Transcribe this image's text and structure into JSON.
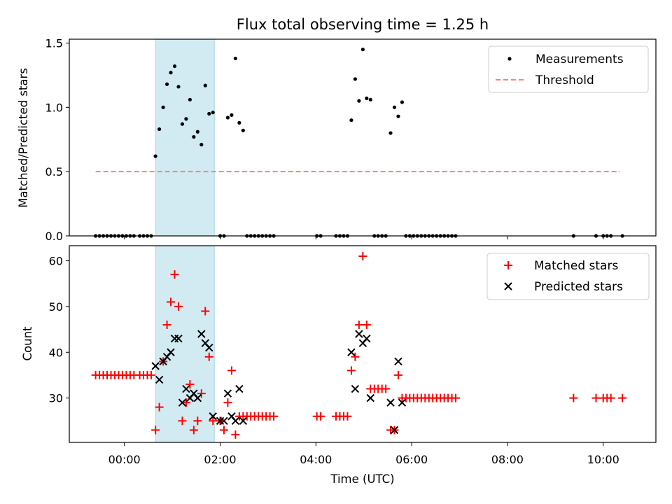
{
  "chart_data": [
    {
      "type": "scatter",
      "title": "Flux total observing time = 1.25 h",
      "ylabel": "Matched/Predicted stars",
      "xlabel": "",
      "xlim": [
        -1.15,
        11.1
      ],
      "ylim": [
        0,
        1.53
      ],
      "yticks": [
        "0.0",
        "0.5",
        "1.0",
        "1.5"
      ],
      "shaded_span": [
        0.65,
        1.88
      ],
      "legend": {
        "placement": "top-right",
        "entries": [
          "Measurements",
          "Threshold"
        ]
      },
      "colors": {
        "measurements": "#000000",
        "threshold": "#ff7f7f",
        "span": "#add8e6"
      },
      "series": [
        {
          "name": "Measurements",
          "x": [
            -0.6,
            -0.52,
            -0.44,
            -0.36,
            -0.28,
            -0.2,
            -0.12,
            -0.04,
            0.04,
            0.12,
            0.2,
            0.32,
            0.4,
            0.48,
            0.56,
            0.65,
            0.73,
            0.81,
            0.89,
            0.97,
            1.05,
            1.13,
            1.21,
            1.29,
            1.37,
            1.45,
            1.53,
            1.61,
            1.69,
            1.77,
            1.85,
            2.0,
            2.08,
            2.16,
            2.24,
            2.32,
            2.4,
            2.48,
            2.56,
            2.64,
            2.72,
            2.8,
            2.88,
            2.96,
            3.04,
            3.12,
            4.02,
            4.1,
            4.42,
            4.5,
            4.58,
            4.66,
            4.74,
            4.82,
            4.9,
            4.98,
            5.06,
            5.14,
            5.22,
            5.3,
            5.38,
            5.46,
            5.56,
            5.64,
            5.72,
            5.8,
            5.88,
            5.96,
            6.04,
            6.12,
            6.2,
            6.28,
            6.36,
            6.44,
            6.52,
            6.6,
            6.68,
            6.76,
            6.84,
            6.92,
            9.38,
            9.85,
            10.0,
            10.08,
            10.16,
            10.4
          ],
          "y": [
            0,
            0,
            0,
            0,
            0,
            0,
            0,
            0,
            0,
            0,
            0,
            0,
            0,
            0,
            0,
            0.62,
            0.83,
            1.0,
            1.18,
            1.27,
            1.32,
            1.16,
            0.87,
            0.91,
            1.06,
            0.77,
            0.81,
            0.71,
            1.17,
            0.95,
            0.96,
            0,
            0,
            0.92,
            0.94,
            1.38,
            0.88,
            0.82,
            0,
            0,
            0,
            0,
            0,
            0,
            0,
            0,
            0,
            0,
            0,
            0,
            0,
            0,
            0.9,
            1.22,
            1.05,
            1.45,
            1.07,
            1.06,
            0,
            0,
            0,
            0,
            0.8,
            1.0,
            0.93,
            1.04,
            0,
            0,
            0,
            0,
            0,
            0,
            0,
            0,
            0,
            0,
            0,
            0,
            0,
            0,
            0,
            0,
            0,
            0,
            0,
            0
          ]
        },
        {
          "name": "Threshold",
          "x": [
            -0.6,
            10.35
          ],
          "y": [
            0.5,
            0.5
          ]
        }
      ]
    },
    {
      "type": "scatter",
      "title": "",
      "ylabel": "Count",
      "xlabel": "Time (UTC)",
      "xlim": [
        -1.15,
        11.1
      ],
      "ylim": [
        20.3,
        63.3
      ],
      "xtick_values": [
        0,
        2,
        4,
        6,
        8,
        10
      ],
      "xticks": [
        "00:00",
        "02:00",
        "04:00",
        "06:00",
        "08:00",
        "10:00"
      ],
      "ytick_values": [
        30,
        40,
        50,
        60
      ],
      "yticks": [
        "30",
        "40",
        "50",
        "60"
      ],
      "shaded_span": [
        0.65,
        1.88
      ],
      "legend": {
        "placement": "top-right",
        "entries": [
          "Matched stars",
          "Predicted stars"
        ]
      },
      "colors": {
        "matched": "#ff0000",
        "predicted": "#000000",
        "span": "#add8e6"
      },
      "series": [
        {
          "name": "Matched stars",
          "x": [
            -0.6,
            -0.52,
            -0.44,
            -0.36,
            -0.28,
            -0.2,
            -0.12,
            -0.04,
            0.04,
            0.12,
            0.2,
            0.32,
            0.4,
            0.48,
            0.56,
            0.65,
            0.73,
            0.81,
            0.89,
            0.97,
            1.05,
            1.13,
            1.21,
            1.29,
            1.37,
            1.45,
            1.53,
            1.61,
            1.69,
            1.77,
            1.85,
            2.0,
            2.08,
            2.16,
            2.24,
            2.32,
            2.4,
            2.48,
            2.56,
            2.64,
            2.72,
            2.8,
            2.88,
            2.96,
            3.04,
            3.12,
            4.02,
            4.1,
            4.42,
            4.5,
            4.58,
            4.66,
            4.74,
            4.82,
            4.9,
            4.98,
            5.06,
            5.14,
            5.22,
            5.3,
            5.38,
            5.46,
            5.56,
            5.64,
            5.72,
            5.8,
            5.88,
            5.96,
            6.04,
            6.12,
            6.2,
            6.28,
            6.36,
            6.44,
            6.52,
            6.6,
            6.68,
            6.76,
            6.84,
            6.92,
            9.38,
            9.85,
            10.0,
            10.08,
            10.16,
            10.4
          ],
          "y": [
            35,
            35,
            35,
            35,
            35,
            35,
            35,
            35,
            35,
            35,
            35,
            35,
            35,
            35,
            35,
            23,
            28,
            38,
            46,
            51,
            57,
            50,
            25,
            29,
            33,
            23,
            25,
            31,
            49,
            39,
            25,
            25,
            23,
            29,
            36,
            22,
            26,
            26,
            26,
            26,
            26,
            26,
            26,
            26,
            26,
            26,
            26,
            26,
            26,
            26,
            26,
            26,
            36,
            39,
            46,
            61,
            46,
            32,
            32,
            32,
            32,
            32,
            23,
            23,
            35,
            30,
            30,
            30,
            30,
            30,
            30,
            30,
            30,
            30,
            30,
            30,
            30,
            30,
            30,
            30,
            30,
            30,
            30,
            30,
            30,
            30
          ]
        },
        {
          "name": "Predicted stars",
          "x": [
            0.65,
            0.73,
            0.81,
            0.89,
            0.97,
            1.05,
            1.13,
            1.21,
            1.29,
            1.37,
            1.45,
            1.53,
            1.61,
            1.69,
            1.77,
            1.85,
            2.0,
            2.08,
            2.16,
            2.24,
            2.32,
            2.4,
            2.48,
            4.74,
            4.82,
            4.9,
            4.98,
            5.06,
            5.14,
            5.56,
            5.64,
            5.72,
            5.8
          ],
          "y": [
            37,
            34,
            38,
            39,
            40,
            43,
            43,
            29,
            32,
            30,
            31,
            30,
            44,
            42,
            41,
            26,
            25,
            25,
            31,
            26,
            25,
            32,
            25,
            40,
            32,
            44,
            42,
            43,
            30,
            29,
            23,
            38,
            29
          ]
        }
      ]
    }
  ]
}
